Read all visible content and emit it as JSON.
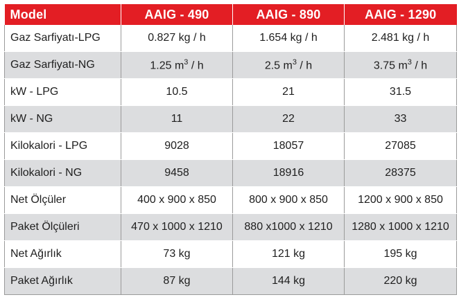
{
  "header": {
    "model": "Model",
    "columns": [
      "AAIG - 490",
      "AAIG - 890",
      "AAIG - 1290"
    ]
  },
  "rows": [
    {
      "label": "Gaz Sarfiyatı-LPG",
      "values": [
        "0.827 kg / h",
        "1.654 kg / h",
        "2.481 kg / h"
      ]
    },
    {
      "label": "Gaz Sarfiyatı-NG",
      "values": [
        "1.25 m3 / h",
        "2.5 m3 / h",
        "3.75 m3 / h"
      ]
    },
    {
      "label": "kW - LPG",
      "values": [
        "10.5",
        "21",
        "31.5"
      ]
    },
    {
      "label": "kW - NG",
      "values": [
        "11",
        "22",
        "33"
      ]
    },
    {
      "label": "Kilokalori - LPG",
      "values": [
        "9028",
        "18057",
        "27085"
      ]
    },
    {
      "label": "Kilokalori - NG",
      "values": [
        "9458",
        "18916",
        "28375"
      ]
    },
    {
      "label": "Net Ölçüler",
      "values": [
        "400 x 900 x 850",
        "800 x 900 x 850",
        "1200 x 900 x 850"
      ]
    },
    {
      "label": "Paket Ölçüleri",
      "values": [
        "470 x 1000 x 1210",
        "880 x1000 x 1210",
        "1280 x 1000 x 1210"
      ]
    },
    {
      "label": "Net Ağırlık",
      "values": [
        "73 kg",
        "121 kg",
        "195 kg"
      ]
    },
    {
      "label": "Paket Ağırlık",
      "values": [
        "87 kg",
        "144 kg",
        "220 kg"
      ]
    }
  ],
  "colors": {
    "header_bg": "#e31e24",
    "header_text": "#ffffff",
    "row_alt_bg": "#dcdddf"
  }
}
